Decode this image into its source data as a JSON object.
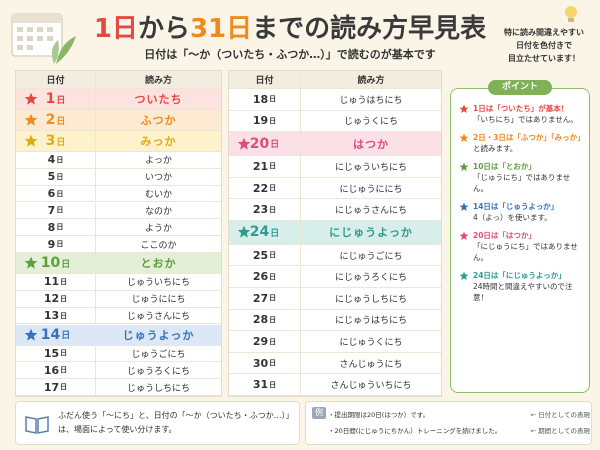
{
  "header": {
    "title_parts": [
      {
        "text": "1日",
        "color": "#e5483f"
      },
      {
        "text": "から",
        "color": "#3a3a3a"
      },
      {
        "text": "31日",
        "color": "#ef8a1c"
      },
      {
        "text": "までの読み方早見表",
        "color": "#3a3a3a"
      }
    ],
    "subtitle": "日付は「〜か（ついたち・ふつか…）」で読むのが基本です",
    "note": [
      "特に読み間違えやすい",
      "日付を色付きで",
      "目立たせています！"
    ]
  },
  "tables": [
    {
      "columns": [
        "日付",
        "読み方"
      ],
      "rows": [
        {
          "day": "1",
          "unit": "日",
          "reading": "ついたち",
          "color": "#e5483f",
          "background": "#fde3e0"
        },
        {
          "day": "2",
          "unit": "日",
          "reading": "ふつか",
          "color": "#ef8a1c",
          "background": "#fdead2"
        },
        {
          "day": "3",
          "unit": "日",
          "reading": "みっか",
          "color": "#e0aa12",
          "background": "#fdf2cc"
        },
        {
          "day": "4",
          "unit": "日",
          "reading": "よっか"
        },
        {
          "day": "5",
          "unit": "日",
          "reading": "いつか"
        },
        {
          "day": "6",
          "unit": "日",
          "reading": "むいか"
        },
        {
          "day": "7",
          "unit": "日",
          "reading": "なのか"
        },
        {
          "day": "8",
          "unit": "日",
          "reading": "ようか"
        },
        {
          "day": "9",
          "unit": "日",
          "reading": "ここのか"
        },
        {
          "day": "10",
          "unit": "日",
          "reading": "とおか",
          "color": "#5e9e3e",
          "background": "#e3efd6"
        },
        {
          "day": "11",
          "unit": "日",
          "reading": "じゅういちにち"
        },
        {
          "day": "12",
          "unit": "日",
          "reading": "じゅうににち"
        },
        {
          "day": "13",
          "unit": "日",
          "reading": "じゅうさんにち"
        },
        {
          "day": "14",
          "unit": "日",
          "reading": "じゅうよっか",
          "color": "#3574bd",
          "background": "#dce8f6"
        },
        {
          "day": "15",
          "unit": "日",
          "reading": "じゅうごにち"
        },
        {
          "day": "16",
          "unit": "日",
          "reading": "じゅうろくにち"
        },
        {
          "day": "17",
          "unit": "日",
          "reading": "じゅうしちにち"
        }
      ]
    },
    {
      "columns": [
        "日付",
        "読み方"
      ],
      "rows": [
        {
          "day": "18",
          "unit": "日",
          "reading": "じゅうはちにち"
        },
        {
          "day": "19",
          "unit": "日",
          "reading": "じゅうくにち"
        },
        {
          "day": "20",
          "unit": "日",
          "reading": "はつか",
          "color": "#d9507a",
          "background": "#fbe0e8"
        },
        {
          "day": "21",
          "unit": "日",
          "reading": "にじゅういちにち"
        },
        {
          "day": "22",
          "unit": "日",
          "reading": "にじゅうににち"
        },
        {
          "day": "23",
          "unit": "日",
          "reading": "にじゅうさんにち"
        },
        {
          "day": "24",
          "unit": "日",
          "reading": "にじゅうよっか",
          "color": "#2f9c8e",
          "background": "#d8eeea"
        },
        {
          "day": "25",
          "unit": "日",
          "reading": "にじゅうごにち"
        },
        {
          "day": "26",
          "unit": "日",
          "reading": "にじゅうろくにち"
        },
        {
          "day": "27",
          "unit": "日",
          "reading": "にじゅうしちにち"
        },
        {
          "day": "28",
          "unit": "日",
          "reading": "にじゅうはちにち"
        },
        {
          "day": "29",
          "unit": "日",
          "reading": "にじゅうくにち"
        },
        {
          "day": "30",
          "unit": "日",
          "reading": "さんじゅうにち"
        },
        {
          "day": "31",
          "unit": "日",
          "reading": "さんじゅういちにち"
        }
      ]
    }
  ],
  "points": {
    "title": "ポイント",
    "items": [
      {
        "lead": "1日は「ついたち」が基本！",
        "body": "「いちにち」ではありません。",
        "color": "#e5483f"
      },
      {
        "lead": "2日・3日は「ふつか」「みっか」",
        "body": "と読みます。",
        "color": "#ef8a1c"
      },
      {
        "lead": "10日は「とおか」",
        "body": "「じゅうにち」ではありません。",
        "color": "#5e9e3e"
      },
      {
        "lead": "14日は「じゅうよっか」",
        "body": "4（よっ）を使います。",
        "color": "#3574bd"
      },
      {
        "lead": "20日は「はつか」",
        "body": "「にじゅうにち」ではありません。",
        "color": "#d9507a"
      },
      {
        "lead": "24日は「にじゅうよっか」",
        "body": "24時間と間違えやすいので注意！",
        "color": "#2f9c8e"
      }
    ]
  },
  "footer": {
    "note": "ふだん使う「〜にち」と、日付の「〜か（ついたち・ふつか…）」は、場面によって使い分けます。",
    "example": {
      "label": "例",
      "lines": [
        {
          "text": "・提出期限は20日(はつか）です。",
          "comment": "← 日付としての表現"
        },
        {
          "text": "・20日間(にじゅうにちかん）トレーニングを続けました。",
          "comment": "← 期間としての表現"
        }
      ]
    }
  }
}
